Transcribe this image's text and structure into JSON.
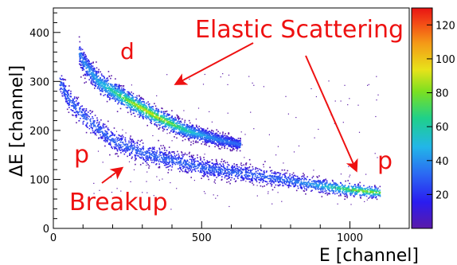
{
  "chart_data": {
    "type": "heatmap",
    "xlabel": "E [channel]",
    "ylabel": "ΔE  [channel]",
    "xlim": [
      0,
      1200
    ],
    "ylim": [
      0,
      450
    ],
    "x_ticks": [
      "0",
      "500",
      "1000"
    ],
    "x_tick_values": [
      0,
      500,
      1000
    ],
    "y_ticks": [
      "0",
      "100",
      "200",
      "300",
      "400"
    ],
    "y_tick_values": [
      0,
      100,
      200,
      300,
      400
    ],
    "colorbar": {
      "range": [
        0,
        130
      ],
      "ticks": [
        "20",
        "40",
        "60",
        "80",
        "100",
        "120"
      ],
      "tick_values": [
        20,
        40,
        60,
        80,
        100,
        120
      ]
    },
    "bands": [
      {
        "label": "d",
        "points": [
          [
            85,
            360
          ],
          [
            100,
            340
          ],
          [
            150,
            300
          ],
          [
            250,
            262
          ],
          [
            350,
            228
          ],
          [
            450,
            200
          ],
          [
            550,
            183
          ],
          [
            630,
            172
          ]
        ],
        "peak": [
          320,
          230
        ],
        "weight": 1.0
      },
      {
        "label": "p",
        "points": [
          [
            20,
            300
          ],
          [
            50,
            265
          ],
          [
            100,
            230
          ],
          [
            200,
            180
          ],
          [
            300,
            155
          ],
          [
            400,
            140
          ],
          [
            500,
            125
          ],
          [
            700,
            108
          ],
          [
            900,
            88
          ],
          [
            1000,
            80
          ],
          [
            1100,
            74
          ]
        ],
        "peak": [
          1050,
          74
        ],
        "weight": 0.85
      }
    ],
    "annotations": {
      "title": "Elastic Scattering",
      "deuteron": "d",
      "proton_upper": "p",
      "proton_lower": "p",
      "breakup": "Breakup"
    },
    "arrow_targets": [
      {
        "label": "Elastic Scattering → d band",
        "x": 420,
        "y": 300
      },
      {
        "label": "Elastic Scattering → p band",
        "x": 1030,
        "y": 120
      },
      {
        "label": "Breakup → p band",
        "x": 230,
        "y": 160
      }
    ],
    "grid": false
  }
}
